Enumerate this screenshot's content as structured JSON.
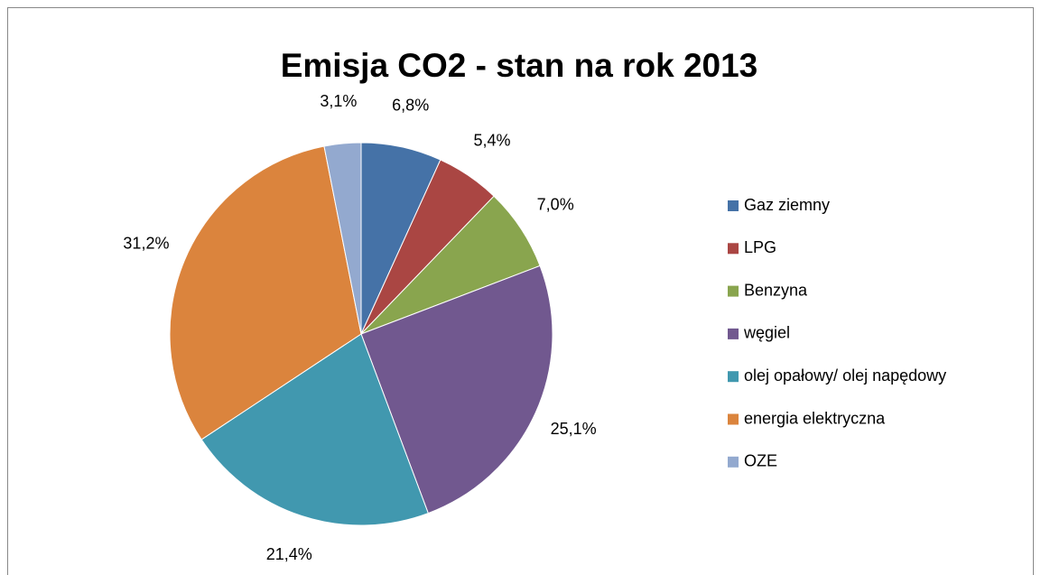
{
  "chart_data": {
    "type": "pie",
    "title": "Emisja CO2 - stan na rok 2013",
    "categories": [
      "Gaz ziemny",
      "LPG",
      "Benzyna",
      "węgiel",
      "olej opałowy/ olej napędowy",
      "energia elektryczna",
      "OZE"
    ],
    "values": [
      6.8,
      5.4,
      7.0,
      25.1,
      21.4,
      31.2,
      3.1
    ],
    "value_labels": [
      "6,8%",
      "5,4%",
      "7,0%",
      "25,1%",
      "21,4%",
      "31,2%",
      "3,1%"
    ],
    "colors": [
      "#4572a7",
      "#aa4643",
      "#89a54e",
      "#71588f",
      "#4198af",
      "#db843d",
      "#93a9cf"
    ],
    "legend": "right"
  }
}
